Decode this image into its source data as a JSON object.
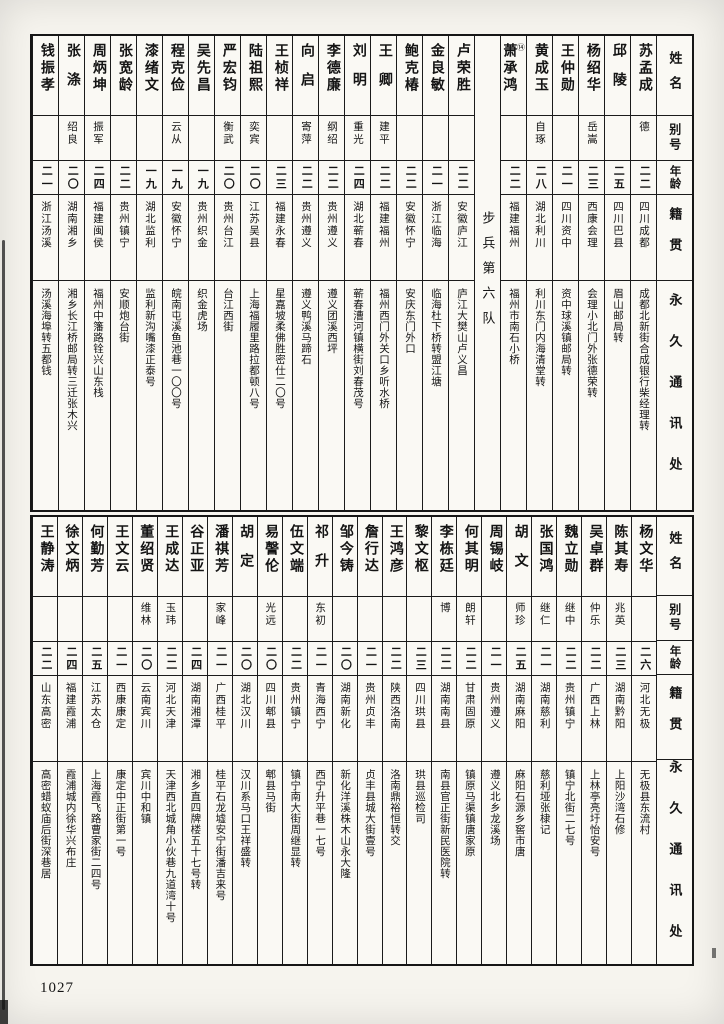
{
  "page_number": "1027",
  "headers": {
    "name": "姓名",
    "alias": "别号",
    "age": "年龄",
    "native": "籍贯",
    "address": "永久通讯处"
  },
  "tables": [
    {
      "unit": "步兵第六队",
      "unit_after_index": 5,
      "persons": [
        {
          "name": "苏孟成",
          "alias": "德",
          "age": "二二",
          "native_place": "四川成都",
          "address": "成都北新街合成银行柴经理转"
        },
        {
          "name": "邱陵",
          "alias": "",
          "age": "二五",
          "native_place": "四川巴县",
          "address": "眉山邮局转"
        },
        {
          "name": "杨绍华",
          "alias": "岳嵩",
          "age": "二三",
          "native_place": "西康会理",
          "address": "会理小北门外张德荣转"
        },
        {
          "name": "王仲勋",
          "alias": "",
          "age": "二一",
          "native_place": "四川资中",
          "address": "资中球溪镇邮局转"
        },
        {
          "name": "黄成玉",
          "alias": "自琢",
          "age": "二八",
          "native_place": "湖北利川",
          "address": "利川东门内海清堂转"
        },
        {
          "name": "萧承鸿",
          "note": "⑭",
          "alias": "",
          "age": "二二",
          "native_place": "福建福州",
          "address": "福州市南石小桥"
        },
        {
          "name": "卢荣胜",
          "alias": "",
          "age": "二二",
          "native_place": "安徽庐江",
          "address": "庐江大樊山卢义昌"
        },
        {
          "name": "金良敏",
          "alias": "",
          "age": "二一",
          "native_place": "浙江临海",
          "address": "临海杜下桥转盟江塘"
        },
        {
          "name": "鲍克椿",
          "alias": "",
          "age": "二二",
          "native_place": "安徽怀宁",
          "address": "安庆东门外口"
        },
        {
          "name": "王卿",
          "alias": "建平",
          "age": "二二",
          "native_place": "福建福州",
          "address": "福州西门外关口乡听水桥"
        },
        {
          "name": "刘明",
          "alias": "重光",
          "age": "二四",
          "native_place": "湖北蕲春",
          "address": "蕲春漕河镇横街刘春茂号"
        },
        {
          "name": "李德廉",
          "alias": "纲绍",
          "age": "二二",
          "native_place": "贵州遵义",
          "address": "遵义团溪西坪"
        },
        {
          "name": "向启",
          "alias": "寄萍",
          "age": "二二",
          "native_place": "贵州遵义",
          "address": "遵义鸭溪马蹄石"
        },
        {
          "name": "王桢祥",
          "alias": "",
          "age": "二三",
          "native_place": "福建永春",
          "address": "星嘉坡柔佛胜密仕二〇号"
        },
        {
          "name": "陆祖熙",
          "alias": "奕宾",
          "age": "二〇",
          "native_place": "江苏吴县",
          "address": "上海福履里路拉都顿八号"
        },
        {
          "name": "严宏钧",
          "alias": "衡武",
          "age": "二〇",
          "native_place": "贵州台江",
          "address": "台江西街"
        },
        {
          "name": "吴先昌",
          "alias": "",
          "age": "一九",
          "native_place": "贵州织金",
          "address": "织金虎场"
        },
        {
          "name": "程克俭",
          "alias": "云从",
          "age": "一九",
          "native_place": "安徽怀宁",
          "address": "皖南屯溪鱼池巷一〇〇号"
        },
        {
          "name": "漆绪文",
          "alias": "",
          "age": "一九",
          "native_place": "湖北监利",
          "address": "监利新沟嘴漆正泰号"
        },
        {
          "name": "张宽龄",
          "alias": "",
          "age": "二二",
          "native_place": "贵州镇宁",
          "address": "安顺炮台街"
        },
        {
          "name": "周炳坤",
          "alias": "振军",
          "age": "二四",
          "native_place": "福建闽侯",
          "address": "福州中籓路铨兴山东栈"
        },
        {
          "name": "张涤",
          "alias": "绍良",
          "age": "二〇",
          "native_place": "湖南湘乡",
          "address": "湘乡长江桥邮局转三迁张木兴"
        },
        {
          "name": "钱振孝",
          "alias": "",
          "age": "二一",
          "native_place": "浙江汤溪",
          "address": "汤溪海埠转五都钱"
        }
      ]
    },
    {
      "persons": [
        {
          "name": "杨文华",
          "alias": "",
          "age": "二六",
          "native_place": "河北无极",
          "address": "无极县东流村"
        },
        {
          "name": "陈其寿",
          "alias": "兆英",
          "age": "二三",
          "native_place": "湖南黔阳",
          "address": "上阳沙湾石修"
        },
        {
          "name": "吴卓群",
          "alias": "仲乐",
          "age": "二二",
          "native_place": "广西上林",
          "address": "上林亭亮圩怡安号"
        },
        {
          "name": "魏立勋",
          "alias": "继中",
          "age": "二二",
          "native_place": "贵州镇宁",
          "address": "镇宁北街二七号"
        },
        {
          "name": "张国鸿",
          "alias": "继仁",
          "age": "二一",
          "native_place": "湖南慈利",
          "address": "慈利垭张棣记"
        },
        {
          "name": "胡文",
          "alias": "师珍",
          "age": "二五",
          "native_place": "湖南麻阳",
          "address": "麻阳石源乡窖市唐"
        },
        {
          "name": "周锡岐",
          "alias": "",
          "age": "二一",
          "native_place": "贵州遵义",
          "address": "遵义北乡龙溪场"
        },
        {
          "name": "何其明",
          "alias": "朗轩",
          "age": "二二",
          "native_place": "甘肃固原",
          "address": "镇原马渠镇唐家原"
        },
        {
          "name": "李栋廷",
          "alias": "博",
          "age": "二二",
          "native_place": "湖南南县",
          "address": "南县官正街新民医院转"
        },
        {
          "name": "黎文枢",
          "alias": "",
          "age": "二三",
          "native_place": "四川珙县",
          "address": "珙县巡检司"
        },
        {
          "name": "王鸿彦",
          "alias": "",
          "age": "二二",
          "native_place": "陕西洛南",
          "address": "洛南鼎裕恒转交"
        },
        {
          "name": "詹行达",
          "alias": "",
          "age": "二一",
          "native_place": "贵州贞丰",
          "address": "贞丰县城大街壹号"
        },
        {
          "name": "邹今铸",
          "alias": "",
          "age": "二〇",
          "native_place": "湖南新化",
          "address": "新化洋溪株木山永大隆"
        },
        {
          "name": "祁升",
          "alias": "东初",
          "age": "二一",
          "native_place": "青海西宁",
          "address": "西宁升平巷一七号"
        },
        {
          "name": "伍文端",
          "alias": "",
          "age": "二二",
          "native_place": "贵州镇宁",
          "address": "镇宁南大街周继显转"
        },
        {
          "name": "易謦伦",
          "alias": "光远",
          "age": "二〇",
          "native_place": "四川郫县",
          "address": "郫县马街"
        },
        {
          "name": "胡定",
          "alias": "",
          "age": "二〇",
          "native_place": "湖北汉川",
          "address": "汉川系马口王祥盛转"
        },
        {
          "name": "潘祺芳",
          "alias": "家峰",
          "age": "二一",
          "native_place": "广西桂平",
          "address": "桂平石龙墟安宁街潘吉来号"
        },
        {
          "name": "谷正亚",
          "alias": "",
          "age": "二四",
          "native_place": "湖南湘潭",
          "address": "湘乡直四牌楼五十七号转"
        },
        {
          "name": "王成达",
          "alias": "玉玮",
          "age": "二二",
          "native_place": "河北天津",
          "address": "天津西北城角小伙巷九道湾十号"
        },
        {
          "name": "董绍贤",
          "alias": "维林",
          "age": "二〇",
          "native_place": "云南宾川",
          "address": "宾川中和镇"
        },
        {
          "name": "王文云",
          "alias": "",
          "age": "二一",
          "native_place": "西康康定",
          "address": "康定中正街第一号"
        },
        {
          "name": "何勤芳",
          "alias": "",
          "age": "二五",
          "native_place": "江苏太仓",
          "address": "上海霞飞路曹家街二四号"
        },
        {
          "name": "徐文炳",
          "alias": "",
          "age": "二四",
          "native_place": "福建霞浦",
          "address": "霞浦城内徐华兴布庄"
        },
        {
          "name": "王静涛",
          "alias": "",
          "age": "二二",
          "native_place": "山东高密",
          "address": "高密蜡蚁庙后街深巷居"
        }
      ]
    }
  ]
}
